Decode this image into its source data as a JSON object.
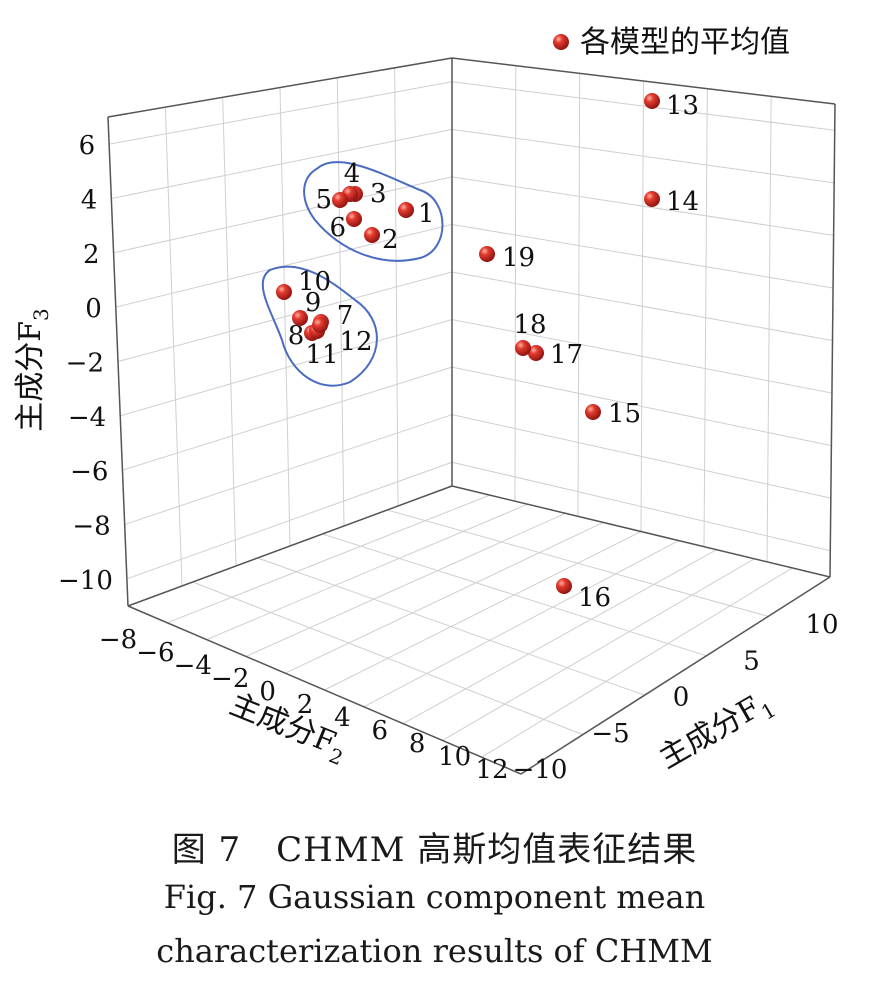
{
  "chart_data": {
    "type": "scatter",
    "legend": {
      "label": "各模型的平均值",
      "placement": "top-right"
    },
    "axes": {
      "x": {
        "label": "主成分F",
        "subscript": "1",
        "ticks": [
          -10,
          -5,
          0,
          5,
          10
        ]
      },
      "y": {
        "label": "主成分F",
        "subscript": "2",
        "ticks": [
          -8,
          -6,
          -4,
          -2,
          0,
          2,
          4,
          6,
          8,
          10,
          12
        ]
      },
      "z": {
        "label": "主成分F",
        "subscript": "3",
        "ticks": [
          -10,
          -8,
          -6,
          -4,
          -2,
          0,
          2,
          4,
          6
        ]
      }
    },
    "grid": true,
    "point_color": "#d9302a",
    "outline_color": "#4a6cc0",
    "points": [
      {
        "label": "1"
      },
      {
        "label": "2"
      },
      {
        "label": "3"
      },
      {
        "label": "4"
      },
      {
        "label": "5"
      },
      {
        "label": "6"
      },
      {
        "label": "7"
      },
      {
        "label": "8"
      },
      {
        "label": "9"
      },
      {
        "label": "10"
      },
      {
        "label": "11"
      },
      {
        "label": "12"
      },
      {
        "label": "13"
      },
      {
        "label": "14"
      },
      {
        "label": "15"
      },
      {
        "label": "16"
      },
      {
        "label": "17"
      },
      {
        "label": "18"
      },
      {
        "label": "19"
      }
    ]
  },
  "caption": {
    "zh": "图 7　CHMM 高斯均值表征结果",
    "en_line1": "Fig. 7  Gaussian component mean",
    "en_line2": "characterization results of CHMM"
  }
}
